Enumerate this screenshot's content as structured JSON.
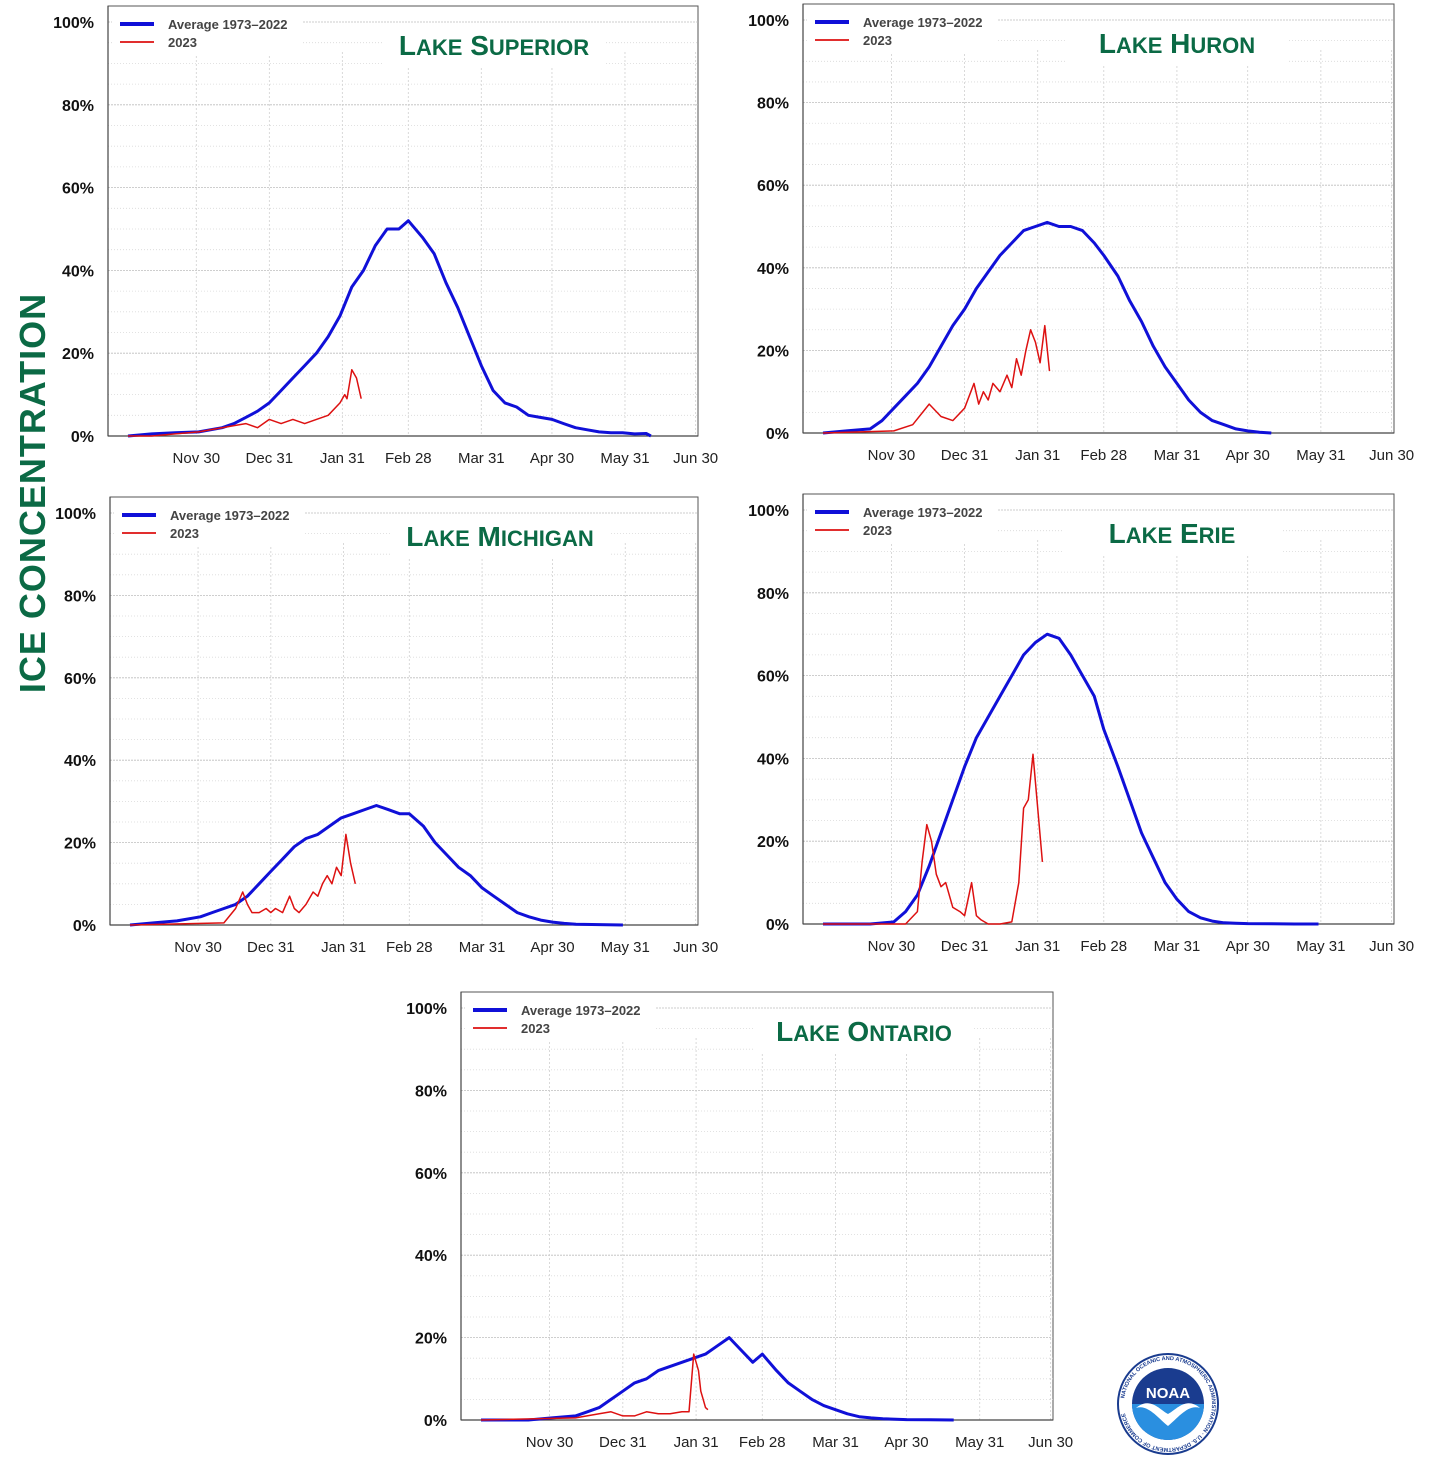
{
  "figure": {
    "y_axis_label": "ICE CONCENTRATION",
    "legend": {
      "average_label": "Average 1973–2022",
      "current_label": "2023"
    },
    "colors": {
      "average": "#1010d8",
      "current": "#dd1111",
      "title": "#0b6a45",
      "grid": "#cfcfcf"
    },
    "logo": {
      "name": "noaa-logo-icon",
      "text": "NOAA",
      "ring_text": "NATIONAL OCEANIC AND ATMOSPHERIC ADMINISTRATION · U.S. DEPARTMENT OF COMMERCE"
    }
  },
  "chart_data": [
    {
      "type": "line",
      "title": "Lake Superior",
      "x_unit": "days since Nov 1 (ticks at month ends)",
      "xlim": [
        0,
        242
      ],
      "xticks": [
        {
          "label": "Nov 30",
          "x": 29
        },
        {
          "label": "Dec 31",
          "x": 60
        },
        {
          "label": "Jan 31",
          "x": 91
        },
        {
          "label": "Feb 28",
          "x": 119
        },
        {
          "label": "Mar 31",
          "x": 150
        },
        {
          "label": "Apr 30",
          "x": 180
        },
        {
          "label": "May 31",
          "x": 211
        },
        {
          "label": "Jun 30",
          "x": 241
        }
      ],
      "ylim": [
        0,
        100
      ],
      "yticks": [
        "0%",
        "20%",
        "40%",
        "60%",
        "80%",
        "100%"
      ],
      "grid": true,
      "legend_position": "top-left",
      "series": [
        {
          "name": "Average 1973–2022",
          "color": "#1010d8",
          "x": [
            0,
            10,
            20,
            30,
            40,
            45,
            50,
            55,
            60,
            65,
            70,
            75,
            80,
            85,
            90,
            95,
            100,
            105,
            110,
            115,
            119,
            125,
            130,
            135,
            140,
            145,
            150,
            155,
            160,
            165,
            170,
            175,
            180,
            185,
            190,
            195,
            200,
            205,
            210,
            215,
            220,
            222
          ],
          "values": [
            0,
            0.5,
            0.8,
            1,
            2,
            3,
            4.5,
            6,
            8,
            11,
            14,
            17,
            20,
            24,
            29,
            36,
            40,
            46,
            50,
            50,
            52,
            48,
            44,
            37,
            31,
            24,
            17,
            11,
            8,
            7,
            5,
            4.5,
            4,
            3,
            2,
            1.5,
            1,
            0.8,
            0.8,
            0.5,
            0.6,
            0
          ]
        },
        {
          "name": "2023",
          "color": "#dd1111",
          "x": [
            0,
            10,
            20,
            30,
            35,
            40,
            45,
            50,
            55,
            60,
            65,
            70,
            75,
            80,
            85,
            90,
            92,
            93,
            95,
            97,
            99
          ],
          "values": [
            0,
            0,
            0.5,
            1,
            1.5,
            2,
            2.5,
            3,
            2,
            4,
            3,
            4,
            3,
            4,
            5,
            8,
            10,
            9,
            16,
            14,
            9
          ]
        }
      ]
    },
    {
      "type": "line",
      "title": "Lake Huron",
      "x_unit": "days since Nov 1 (ticks at month ends)",
      "xlim": [
        0,
        242
      ],
      "xticks": [
        {
          "label": "Nov 30",
          "x": 29
        },
        {
          "label": "Dec 31",
          "x": 60
        },
        {
          "label": "Jan 31",
          "x": 91
        },
        {
          "label": "Feb 28",
          "x": 119
        },
        {
          "label": "Mar 31",
          "x": 150
        },
        {
          "label": "Apr 30",
          "x": 180
        },
        {
          "label": "May 31",
          "x": 211
        },
        {
          "label": "Jun 30",
          "x": 241
        }
      ],
      "ylim": [
        0,
        100
      ],
      "yticks": [
        "0%",
        "20%",
        "40%",
        "60%",
        "80%",
        "100%"
      ],
      "grid": true,
      "legend_position": "top-left",
      "series": [
        {
          "name": "Average 1973–2022",
          "color": "#1010d8",
          "x": [
            0,
            10,
            20,
            25,
            30,
            35,
            40,
            45,
            50,
            55,
            60,
            65,
            70,
            75,
            80,
            85,
            90,
            95,
            100,
            105,
            110,
            115,
            119,
            125,
            130,
            135,
            140,
            145,
            150,
            155,
            160,
            165,
            170,
            175,
            180,
            185,
            190
          ],
          "values": [
            0,
            0.5,
            1,
            3,
            6,
            9,
            12,
            16,
            21,
            26,
            30,
            35,
            39,
            43,
            46,
            49,
            50,
            51,
            50,
            50,
            49,
            46,
            43,
            38,
            32,
            27,
            21,
            16,
            12,
            8,
            5,
            3,
            2,
            1,
            0.5,
            0.2,
            0
          ]
        },
        {
          "name": "2023",
          "color": "#dd1111",
          "x": [
            0,
            30,
            38,
            45,
            50,
            55,
            60,
            64,
            66,
            68,
            70,
            72,
            75,
            78,
            80,
            82,
            84,
            86,
            88,
            90,
            92,
            94,
            96
          ],
          "values": [
            0,
            0.5,
            2,
            7,
            4,
            3,
            6,
            12,
            7,
            10,
            8,
            12,
            10,
            14,
            11,
            18,
            14,
            20,
            25,
            22,
            17,
            26,
            15
          ]
        }
      ]
    },
    {
      "type": "line",
      "title": "Lake Michigan",
      "x_unit": "days since Nov 1 (ticks at month ends)",
      "xlim": [
        0,
        242
      ],
      "xticks": [
        {
          "label": "Nov 30",
          "x": 29
        },
        {
          "label": "Dec 31",
          "x": 60
        },
        {
          "label": "Jan 31",
          "x": 91
        },
        {
          "label": "Feb 28",
          "x": 119
        },
        {
          "label": "Mar 31",
          "x": 150
        },
        {
          "label": "Apr 30",
          "x": 180
        },
        {
          "label": "May 31",
          "x": 211
        },
        {
          "label": "Jun 30",
          "x": 241
        }
      ],
      "ylim": [
        0,
        100
      ],
      "yticks": [
        "0%",
        "20%",
        "40%",
        "60%",
        "80%",
        "100%"
      ],
      "grid": true,
      "legend_position": "top-left",
      "series": [
        {
          "name": "Average 1973–2022",
          "color": "#1010d8",
          "x": [
            0,
            10,
            20,
            30,
            35,
            40,
            45,
            50,
            55,
            60,
            65,
            70,
            75,
            80,
            85,
            90,
            95,
            100,
            105,
            110,
            115,
            119,
            125,
            130,
            135,
            140,
            145,
            150,
            155,
            160,
            165,
            170,
            175,
            180,
            185,
            190,
            200,
            210
          ],
          "values": [
            0,
            0.5,
            1,
            2,
            3,
            4,
            5,
            7,
            10,
            13,
            16,
            19,
            21,
            22,
            24,
            26,
            27,
            28,
            29,
            28,
            27,
            27,
            24,
            20,
            17,
            14,
            12,
            9,
            7,
            5,
            3,
            2,
            1.2,
            0.7,
            0.4,
            0.2,
            0.1,
            0
          ]
        },
        {
          "name": "2023",
          "color": "#dd1111",
          "x": [
            0,
            40,
            45,
            48,
            50,
            52,
            55,
            58,
            60,
            62,
            65,
            68,
            70,
            72,
            75,
            78,
            80,
            82,
            84,
            86,
            88,
            90,
            92,
            94,
            96
          ],
          "values": [
            0,
            0.5,
            4,
            8,
            5,
            3,
            3,
            4,
            3,
            4,
            3,
            7,
            4,
            3,
            5,
            8,
            7,
            10,
            12,
            10,
            14,
            12,
            22,
            15,
            10
          ]
        }
      ]
    },
    {
      "type": "line",
      "title": "Lake Erie",
      "x_unit": "days since Nov 1 (ticks at month ends)",
      "xlim": [
        0,
        242
      ],
      "xticks": [
        {
          "label": "Nov 30",
          "x": 29
        },
        {
          "label": "Dec 31",
          "x": 60
        },
        {
          "label": "Jan 31",
          "x": 91
        },
        {
          "label": "Feb 28",
          "x": 119
        },
        {
          "label": "Mar 31",
          "x": 150
        },
        {
          "label": "Apr 30",
          "x": 180
        },
        {
          "label": "May 31",
          "x": 211
        },
        {
          "label": "Jun 30",
          "x": 241
        }
      ],
      "ylim": [
        0,
        100
      ],
      "yticks": [
        "0%",
        "20%",
        "40%",
        "60%",
        "80%",
        "100%"
      ],
      "grid": true,
      "legend_position": "top-left",
      "series": [
        {
          "name": "Average 1973–2022",
          "color": "#1010d8",
          "x": [
            0,
            20,
            30,
            35,
            40,
            45,
            50,
            55,
            60,
            65,
            70,
            75,
            80,
            85,
            90,
            95,
            100,
            105,
            110,
            115,
            119,
            125,
            130,
            135,
            140,
            145,
            150,
            155,
            160,
            165,
            170,
            175,
            180,
            190,
            200,
            210
          ],
          "values": [
            0,
            0,
            0.5,
            3,
            7,
            14,
            22,
            30,
            38,
            45,
            50,
            55,
            60,
            65,
            68,
            70,
            69,
            65,
            60,
            55,
            47,
            38,
            30,
            22,
            16,
            10,
            6,
            3,
            1.5,
            0.7,
            0.3,
            0.2,
            0.1,
            0.05,
            0,
            0
          ]
        },
        {
          "name": "2023",
          "color": "#dd1111",
          "x": [
            0,
            35,
            40,
            42,
            44,
            46,
            48,
            50,
            52,
            55,
            58,
            60,
            63,
            65,
            67,
            70,
            72,
            75,
            80,
            83,
            85,
            87,
            89,
            91,
            93
          ],
          "values": [
            0,
            0,
            3,
            15,
            24,
            20,
            12,
            9,
            10,
            4,
            3,
            2,
            10,
            2,
            1,
            0,
            0,
            0,
            0.5,
            10,
            28,
            30,
            41,
            28,
            15
          ]
        }
      ]
    },
    {
      "type": "line",
      "title": "Lake Ontario",
      "x_unit": "days since Nov 1 (ticks at month ends)",
      "xlim": [
        0,
        242
      ],
      "xticks": [
        {
          "label": "Nov 30",
          "x": 29
        },
        {
          "label": "Dec 31",
          "x": 60
        },
        {
          "label": "Jan 31",
          "x": 91
        },
        {
          "label": "Feb 28",
          "x": 119
        },
        {
          "label": "Mar 31",
          "x": 150
        },
        {
          "label": "Apr 30",
          "x": 180
        },
        {
          "label": "May 31",
          "x": 211
        },
        {
          "label": "Jun 30",
          "x": 241
        }
      ],
      "ylim": [
        0,
        100
      ],
      "yticks": [
        "0%",
        "20%",
        "40%",
        "60%",
        "80%",
        "100%"
      ],
      "grid": true,
      "legend_position": "top-left",
      "series": [
        {
          "name": "Average 1973–2022",
          "color": "#1010d8",
          "x": [
            0,
            20,
            30,
            40,
            45,
            50,
            55,
            60,
            65,
            70,
            75,
            80,
            85,
            90,
            95,
            100,
            105,
            110,
            115,
            119,
            125,
            130,
            135,
            140,
            145,
            150,
            155,
            160,
            165,
            170,
            180,
            190,
            200
          ],
          "values": [
            0,
            0,
            0.5,
            1,
            2,
            3,
            5,
            7,
            9,
            10,
            12,
            13,
            14,
            15,
            16,
            18,
            20,
            17,
            14,
            16,
            12,
            9,
            7,
            5,
            3.5,
            2.5,
            1.5,
            0.8,
            0.5,
            0.3,
            0.1,
            0.05,
            0
          ]
        },
        {
          "name": "2023",
          "color": "#dd1111",
          "x": [
            0,
            40,
            50,
            55,
            60,
            65,
            70,
            75,
            80,
            85,
            88,
            90,
            91,
            92,
            93,
            94,
            95,
            96
          ],
          "values": [
            0,
            0.5,
            1.5,
            2,
            1,
            1,
            2,
            1.5,
            1.5,
            2,
            2,
            16,
            14,
            12,
            7,
            5,
            3,
            2.5
          ]
        }
      ]
    }
  ]
}
